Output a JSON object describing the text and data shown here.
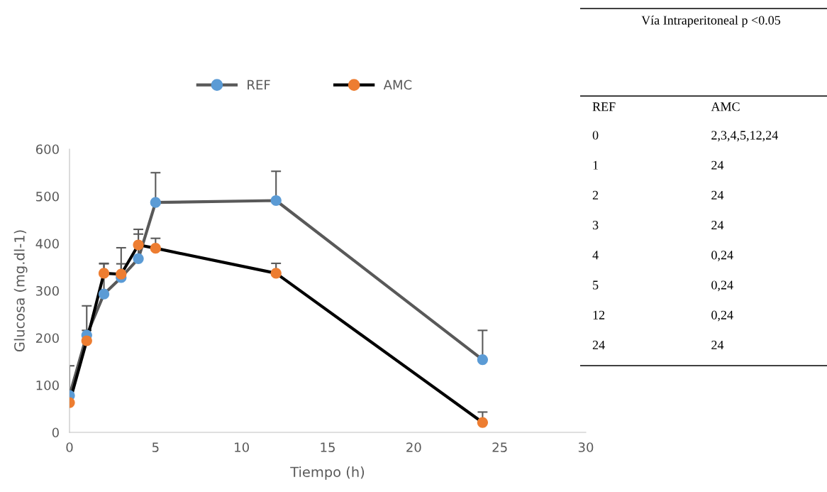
{
  "chart_data": {
    "type": "line",
    "xlabel": "Tiempo (h)",
    "ylabel": "Glucosa (mg.dl-1)",
    "xlim": [
      0,
      30
    ],
    "xticks": [
      0,
      5,
      10,
      15,
      20,
      25,
      30
    ],
    "ylim": [
      0,
      600
    ],
    "yticks": [
      0,
      100,
      200,
      300,
      400,
      500,
      600
    ],
    "grid": false,
    "legend": "top",
    "marker": "circle",
    "line_style": "solid",
    "x": [
      0,
      1,
      2,
      3,
      4,
      5,
      12,
      24
    ],
    "series": [
      {
        "name": "REF",
        "color": "#595959",
        "colors": [
          "#5b9bd5",
          "#5b9bd5",
          "#5b9bd5",
          "#5b9bd5",
          "#5b9bd5",
          "#5b9bd5",
          "#5b9bd5",
          "#5b9bd5"
        ],
        "values": [
          78,
          206,
          293,
          328,
          368,
          487,
          491,
          154
        ],
        "errors": [
          [
            78,
            141
          ],
          [
            206,
            268
          ],
          [
            293,
            357
          ],
          [
            328,
            391
          ],
          [
            368,
            430
          ],
          [
            487,
            550
          ],
          [
            491,
            553
          ],
          [
            154,
            216
          ]
        ]
      },
      {
        "name": "AMC",
        "color": "#000000",
        "colors": [
          "#ed7d31",
          "#ed7d31",
          "#ed7d31",
          "#ed7d31",
          "#ed7d31",
          "#ed7d31",
          "#ed7d31",
          "#ed7d31"
        ],
        "values": [
          63,
          194,
          337,
          335,
          397,
          390,
          337,
          21
        ],
        "errors": [
          null,
          [
            194,
            216
          ],
          [
            337,
            358
          ],
          [
            335,
            357
          ],
          [
            397,
            420
          ],
          [
            390,
            411
          ],
          [
            337,
            358
          ],
          [
            21,
            43
          ]
        ]
      }
    ],
    "annotations": [
      "Vía Intraperitoneal p <0.05",
      "REF",
      "AMC",
      "0",
      "2,3,4,5,12,24",
      "1",
      "24",
      "2",
      "24",
      "3",
      "24",
      "4",
      "0,24",
      "5",
      "0,24",
      "12",
      "0,24",
      "24",
      "24"
    ]
  }
}
